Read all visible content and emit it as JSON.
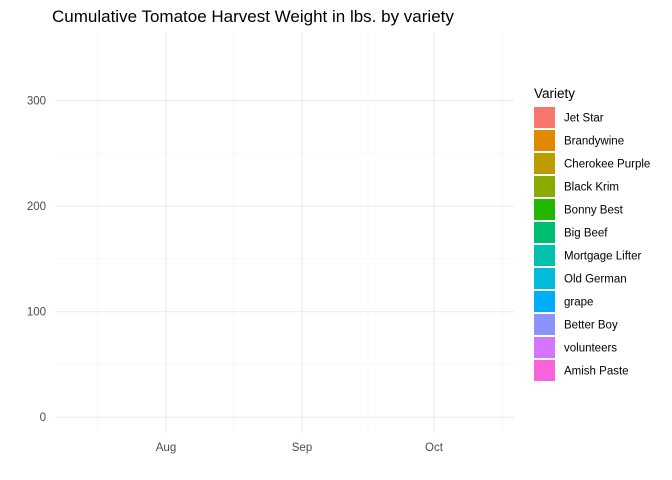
{
  "chart_data": {
    "type": "area",
    "title": "Cumulative Tomatoe Harvest Weight in lbs. by variety",
    "xlabel": "",
    "ylabel": "",
    "x_ticks": [
      "Aug",
      "Sep",
      "Oct"
    ],
    "y_ticks": [
      0,
      100,
      200,
      300
    ],
    "ylim": [
      -15,
      365
    ],
    "grid": true,
    "legend": {
      "title": "Variety",
      "position": "right",
      "entries": [
        {
          "name": "Jet Star",
          "color": "#F8766D"
        },
        {
          "name": "Brandywine",
          "color": "#E18A00"
        },
        {
          "name": "Cherokee Purple",
          "color": "#BE9C00"
        },
        {
          "name": "Black Krim",
          "color": "#8CAB00"
        },
        {
          "name": "Bonny Best",
          "color": "#24B700"
        },
        {
          "name": "Big Beef",
          "color": "#00BE70"
        },
        {
          "name": "Mortgage Lifter",
          "color": "#00C1AB"
        },
        {
          "name": "Old German",
          "color": "#00BBDA"
        },
        {
          "name": "grape",
          "color": "#00ACFC"
        },
        {
          "name": "Better Boy",
          "color": "#8B93FF"
        },
        {
          "name": "volunteers",
          "color": "#D575FE"
        },
        {
          "name": "Amish Paste",
          "color": "#F962DD"
        }
      ]
    },
    "series": []
  }
}
